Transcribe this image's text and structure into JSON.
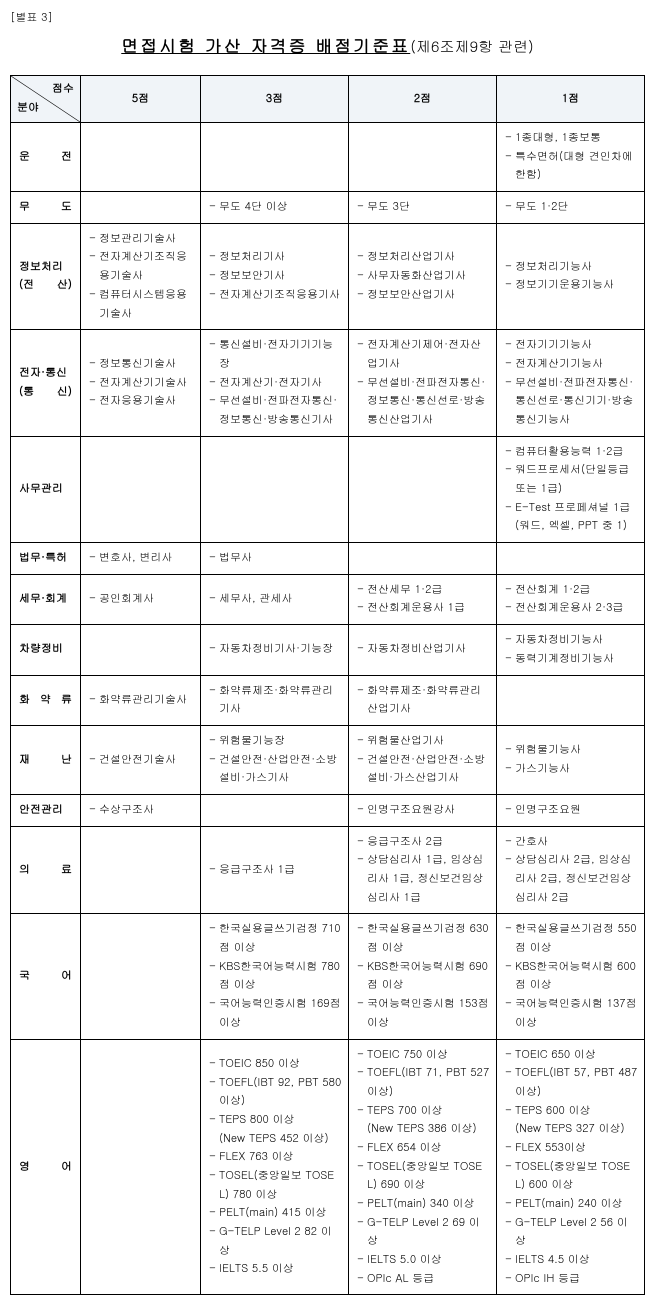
{
  "annex": "[별표 3]",
  "title_main": "면접시험 가산 자격증 배점기준표",
  "title_sub": "(제6조제9항 관련)",
  "header": {
    "diag_top": "점수",
    "diag_bottom": "분야",
    "c5": "5점",
    "c3": "3점",
    "c2": "2점",
    "c1": "1점"
  },
  "rows": [
    {
      "cat": "운 전",
      "p5": [],
      "p3": [],
      "p2": [],
      "p1": [
        "1종대형, 1종보통",
        "특수면허(대형 견인차에 한함)"
      ]
    },
    {
      "cat": "무 도",
      "p5": [],
      "p3": [
        "무도 4단 이상"
      ],
      "p2": [
        "무도 3단"
      ],
      "p1": [
        "무도 1·2단"
      ]
    },
    {
      "cat": "정보처리\n(전 산)",
      "p5": [
        "정보관리기술사",
        "전자계산기조직응용기술사",
        "컴퓨터시스템응용기술사"
      ],
      "p3": [
        "정보처리기사",
        "정보보안기사",
        "전자계산기조직응용기사"
      ],
      "p2": [
        "정보처리산업기사",
        "사무자동화산업기사",
        "정보보안산업기사"
      ],
      "p1": [
        "정보처리기능사",
        "정보기기운용기능사"
      ]
    },
    {
      "cat": "전자·통신\n(통 신)",
      "p5": [
        "정보통신기술사",
        "전자계산기기술사",
        "전자응용기술사"
      ],
      "p3": [
        "통신설비·전자기기기능장",
        "전자계산기·전자기사",
        "무선설비·전파전자통신·정보통신·방송통신기사"
      ],
      "p2": [
        "전자계산기제어·전자산업기사",
        "무선설비·전파전자통신·정보통신·통신선로·방송통신산업기사"
      ],
      "p1": [
        "전자기기기능사",
        "전자계산기기능사",
        "무선설비·전파전자통신·통신선로·통신기기·방송통신기능사"
      ]
    },
    {
      "cat": "사무관리",
      "p5": [],
      "p3": [],
      "p2": [],
      "p1": [
        "컴퓨터활용능력 1·2급",
        "워드프로세서(단일등급 또는 1급)",
        "E-Test 프로페셔널 1급(워드, 엑셀, PPT 중 1)"
      ]
    },
    {
      "cat": "법무·특허",
      "p5": [
        "변호사, 변리사"
      ],
      "p3": [
        "법무사"
      ],
      "p2": [],
      "p1": []
    },
    {
      "cat": "세무·회계",
      "p5": [
        "공인회계사"
      ],
      "p3": [
        "세무사, 관세사"
      ],
      "p2": [
        "전산세무 1·2급",
        "전산회계운용사 1급"
      ],
      "p1": [
        "전산회계 1·2급",
        "전산회계운용사 2·3급"
      ]
    },
    {
      "cat": "차량정비",
      "p5": [],
      "p3": [
        "자동차정비기사·기능장"
      ],
      "p2": [
        "자동차정비산업기사"
      ],
      "p1": [
        "자동차정비기능사",
        "동력기계정비기능사"
      ]
    },
    {
      "cat": "화 약 류",
      "p5": [
        "화약류관리기술사"
      ],
      "p3": [
        "화약류제조·화약류관리기사"
      ],
      "p2": [
        "화약류제조·화약류관리산업기사"
      ],
      "p1": []
    },
    {
      "cat": "재 난",
      "p5": [
        "건설안전기술사"
      ],
      "p3": [
        "위험물기능장",
        "건설안전·산업안전·소방설비·가스기사"
      ],
      "p2": [
        "위험물산업기사",
        "건설안전·산업안전·소방설비·가스산업기사"
      ],
      "p1": [
        "위험물기능사",
        "가스기능사"
      ]
    },
    {
      "cat": "안전관리",
      "p5": [
        "수상구조사"
      ],
      "p3": [],
      "p2": [
        "인명구조요원강사"
      ],
      "p1": [
        "인명구조요원"
      ]
    },
    {
      "cat": "의 료",
      "p5": [],
      "p3": [
        "응급구조사 1급"
      ],
      "p2": [
        "응급구조사 2급",
        "상담심리사 1급, 임상심리사 1급, 정신보건임상심리사 1급"
      ],
      "p1": [
        "간호사",
        "상담심리사 2급, 임상심리사 2급, 정신보건임상심리사 2급"
      ]
    },
    {
      "cat": "국 어",
      "p5": [],
      "p3": [
        "한국실용글쓰기검정 710점 이상",
        "KBS한국어능력시험 780점 이상",
        "국어능력인증시험 169점 이상"
      ],
      "p2": [
        "한국실용글쓰기검정 630점 이상",
        "KBS한국어능력시험 690점 이상",
        "국어능력인증시험 153점 이상"
      ],
      "p1": [
        "한국실용글쓰기검정 550점 이상",
        "KBS한국어능력시험 600점 이상",
        "국어능력인증시험 137점 이상"
      ]
    },
    {
      "cat": "영 어",
      "p5": [],
      "p3": [
        "TOEIC 850 이상",
        "TOEFL(IBT 92, PBT 580 이상)",
        "TEPS 800 이상\n (New TEPS 452 이상)",
        "FLEX 763 이상",
        "TOSEL(중앙일보 TOSEL) 780 이상",
        "PELT(main) 415 이상",
        "G-TELP Level 2 82 이상",
        "IELTS 5.5 이상"
      ],
      "p2": [
        "TOEIC 750 이상",
        "TOEFL(IBT 71, PBT 527 이상)",
        "TEPS 700 이상\n (New TEPS 386 이상)",
        "FLEX 654 이상",
        "TOSEL(중앙일보 TOSEL) 690 이상",
        "PELT(main) 340 이상",
        "G-TELP Level 2 69 이상",
        "IELTS 5.0 이상",
        "OPIc AL 등급"
      ],
      "p1": [
        "TOEIC 650 이상",
        "TOEFL(IBT 57, PBT 487 이상)",
        "TEPS 600 이상\n (New TEPS 327 이상)",
        "FLEX 553이상",
        "TOSEL(중앙일보 TOSEL) 600 이상",
        "PELT(main) 240 이상",
        "G-TELP Level 2 56 이상",
        "IELTS 4.5 이상",
        "OPIc IH 등급"
      ]
    }
  ]
}
